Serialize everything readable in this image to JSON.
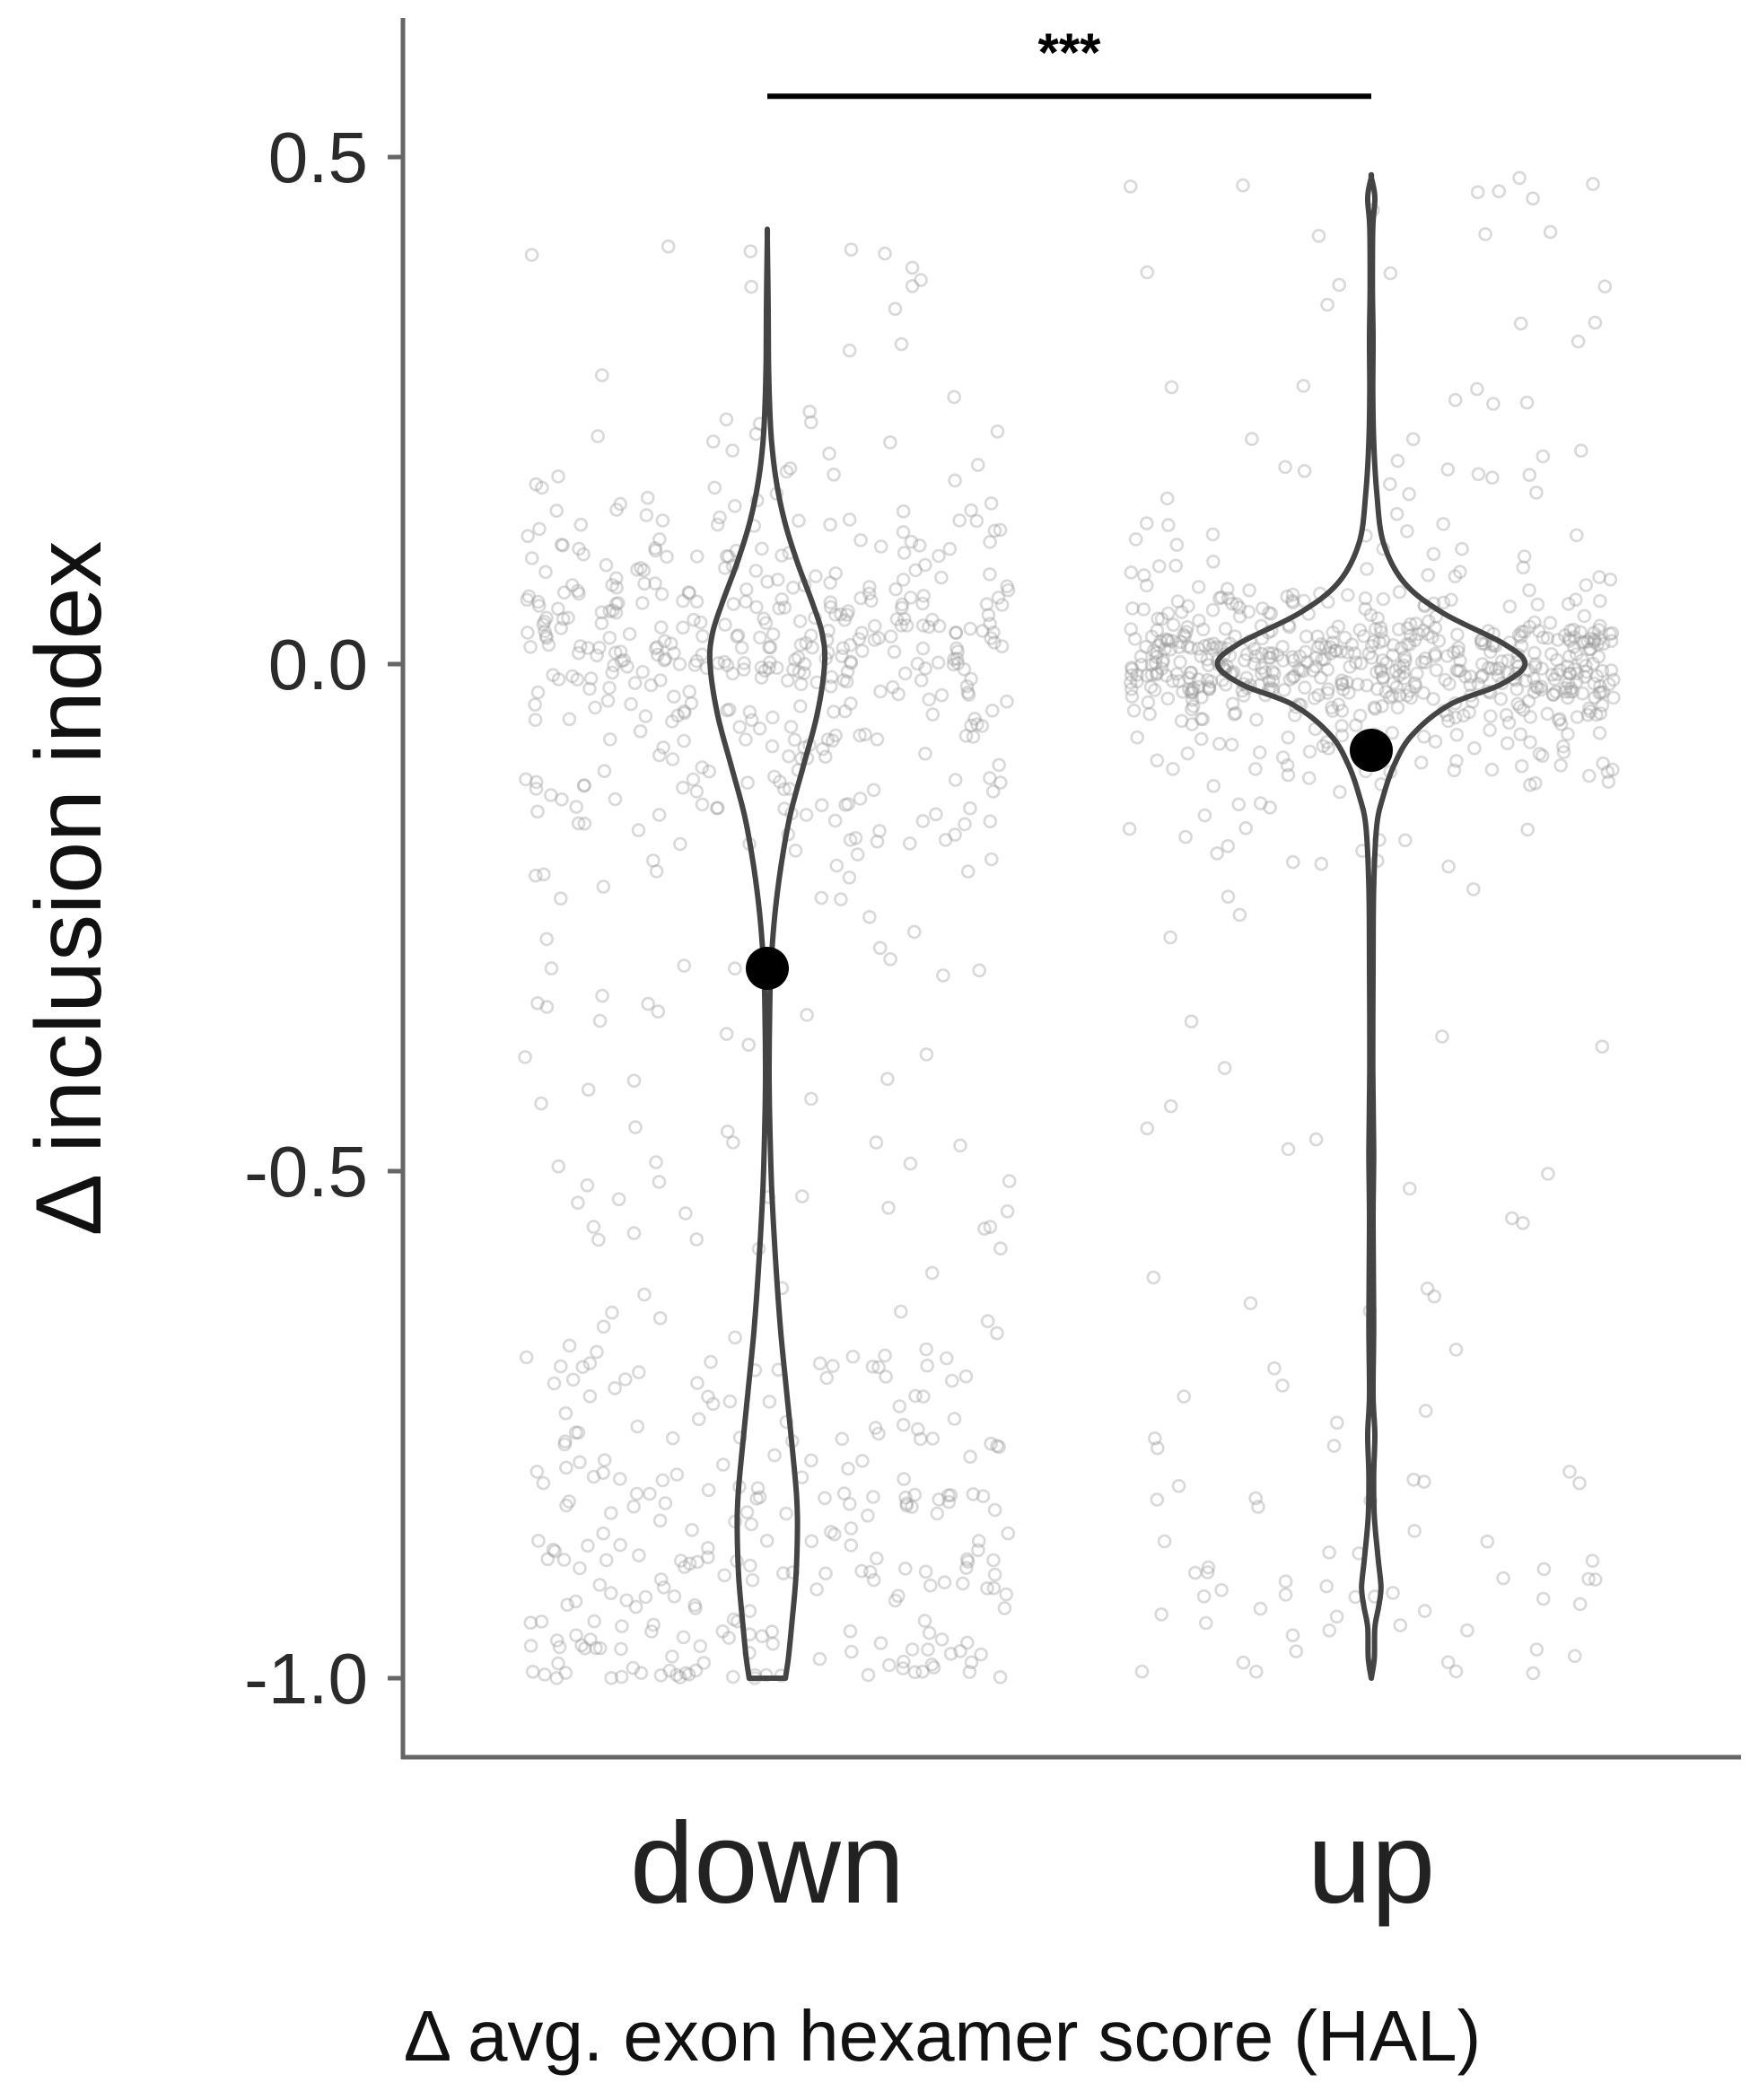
{
  "chart_data": {
    "type": "violin",
    "title": "",
    "xlabel": "Δ avg. exon hexamer score (HAL)",
    "ylabel": "Δ inclusion index",
    "categories": [
      "down",
      "up"
    ],
    "ylim": [
      -1.08,
      0.64
    ],
    "yticks": [
      -1.0,
      -0.5,
      0.0,
      0.5
    ],
    "ytick_labels": [
      "-1.0",
      "-0.5",
      "0.0",
      "0.5"
    ],
    "grid": false,
    "significance": {
      "label": "***",
      "between": [
        "down",
        "up"
      ],
      "y": 0.56
    },
    "series": [
      {
        "category": "down",
        "mean": -0.3,
        "ymin": -1.0,
        "ymax": 0.42,
        "density": [
          {
            "y": -1.0,
            "w": 0.06
          },
          {
            "y": -0.98,
            "w": 0.07
          },
          {
            "y": -0.95,
            "w": 0.08
          },
          {
            "y": -0.9,
            "w": 0.095
          },
          {
            "y": -0.85,
            "w": 0.1
          },
          {
            "y": -0.82,
            "w": 0.097
          },
          {
            "y": -0.78,
            "w": 0.085
          },
          {
            "y": -0.72,
            "w": 0.065
          },
          {
            "y": -0.66,
            "w": 0.045
          },
          {
            "y": -0.6,
            "w": 0.03
          },
          {
            "y": -0.52,
            "w": 0.015
          },
          {
            "y": -0.45,
            "w": 0.008
          },
          {
            "y": -0.4,
            "w": 0.006
          },
          {
            "y": -0.34,
            "w": 0.008
          },
          {
            "y": -0.3,
            "w": 0.012
          },
          {
            "y": -0.25,
            "w": 0.024
          },
          {
            "y": -0.2,
            "w": 0.045
          },
          {
            "y": -0.15,
            "w": 0.075
          },
          {
            "y": -0.1,
            "w": 0.12
          },
          {
            "y": -0.05,
            "w": 0.165
          },
          {
            "y": 0.0,
            "w": 0.19
          },
          {
            "y": 0.03,
            "w": 0.182
          },
          {
            "y": 0.06,
            "w": 0.15
          },
          {
            "y": 0.1,
            "w": 0.1
          },
          {
            "y": 0.14,
            "w": 0.058
          },
          {
            "y": 0.18,
            "w": 0.03
          },
          {
            "y": 0.22,
            "w": 0.014
          },
          {
            "y": 0.26,
            "w": 0.007
          },
          {
            "y": 0.3,
            "w": 0.004
          },
          {
            "y": 0.35,
            "w": 0.003
          },
          {
            "y": 0.42,
            "w": 0.0
          }
        ]
      },
      {
        "category": "up",
        "mean": -0.085,
        "ymin": -1.0,
        "ymax": 0.48,
        "density": [
          {
            "y": -1.0,
            "w": 0.0
          },
          {
            "y": -0.98,
            "w": 0.01
          },
          {
            "y": -0.95,
            "w": 0.012
          },
          {
            "y": -0.93,
            "w": 0.024
          },
          {
            "y": -0.91,
            "w": 0.032
          },
          {
            "y": -0.88,
            "w": 0.022
          },
          {
            "y": -0.84,
            "w": 0.01
          },
          {
            "y": -0.8,
            "w": 0.008
          },
          {
            "y": -0.76,
            "w": 0.012
          },
          {
            "y": -0.72,
            "w": 0.006
          },
          {
            "y": -0.65,
            "w": 0.008
          },
          {
            "y": -0.55,
            "w": 0.006
          },
          {
            "y": -0.48,
            "w": 0.008
          },
          {
            "y": -0.4,
            "w": 0.005
          },
          {
            "y": -0.3,
            "w": 0.006
          },
          {
            "y": -0.22,
            "w": 0.008
          },
          {
            "y": -0.16,
            "w": 0.018
          },
          {
            "y": -0.13,
            "w": 0.04
          },
          {
            "y": -0.1,
            "w": 0.075
          },
          {
            "y": -0.07,
            "w": 0.135
          },
          {
            "y": -0.04,
            "w": 0.26
          },
          {
            "y": -0.02,
            "w": 0.43
          },
          {
            "y": 0.0,
            "w": 0.51
          },
          {
            "y": 0.02,
            "w": 0.44
          },
          {
            "y": 0.05,
            "w": 0.24
          },
          {
            "y": 0.08,
            "w": 0.11
          },
          {
            "y": 0.12,
            "w": 0.04
          },
          {
            "y": 0.17,
            "w": 0.018
          },
          {
            "y": 0.22,
            "w": 0.008
          },
          {
            "y": 0.27,
            "w": 0.005
          },
          {
            "y": 0.32,
            "w": 0.006
          },
          {
            "y": 0.37,
            "w": 0.004
          },
          {
            "y": 0.43,
            "w": 0.005
          },
          {
            "y": 0.46,
            "w": 0.012
          },
          {
            "y": 0.48,
            "w": 0.0
          }
        ]
      }
    ]
  }
}
